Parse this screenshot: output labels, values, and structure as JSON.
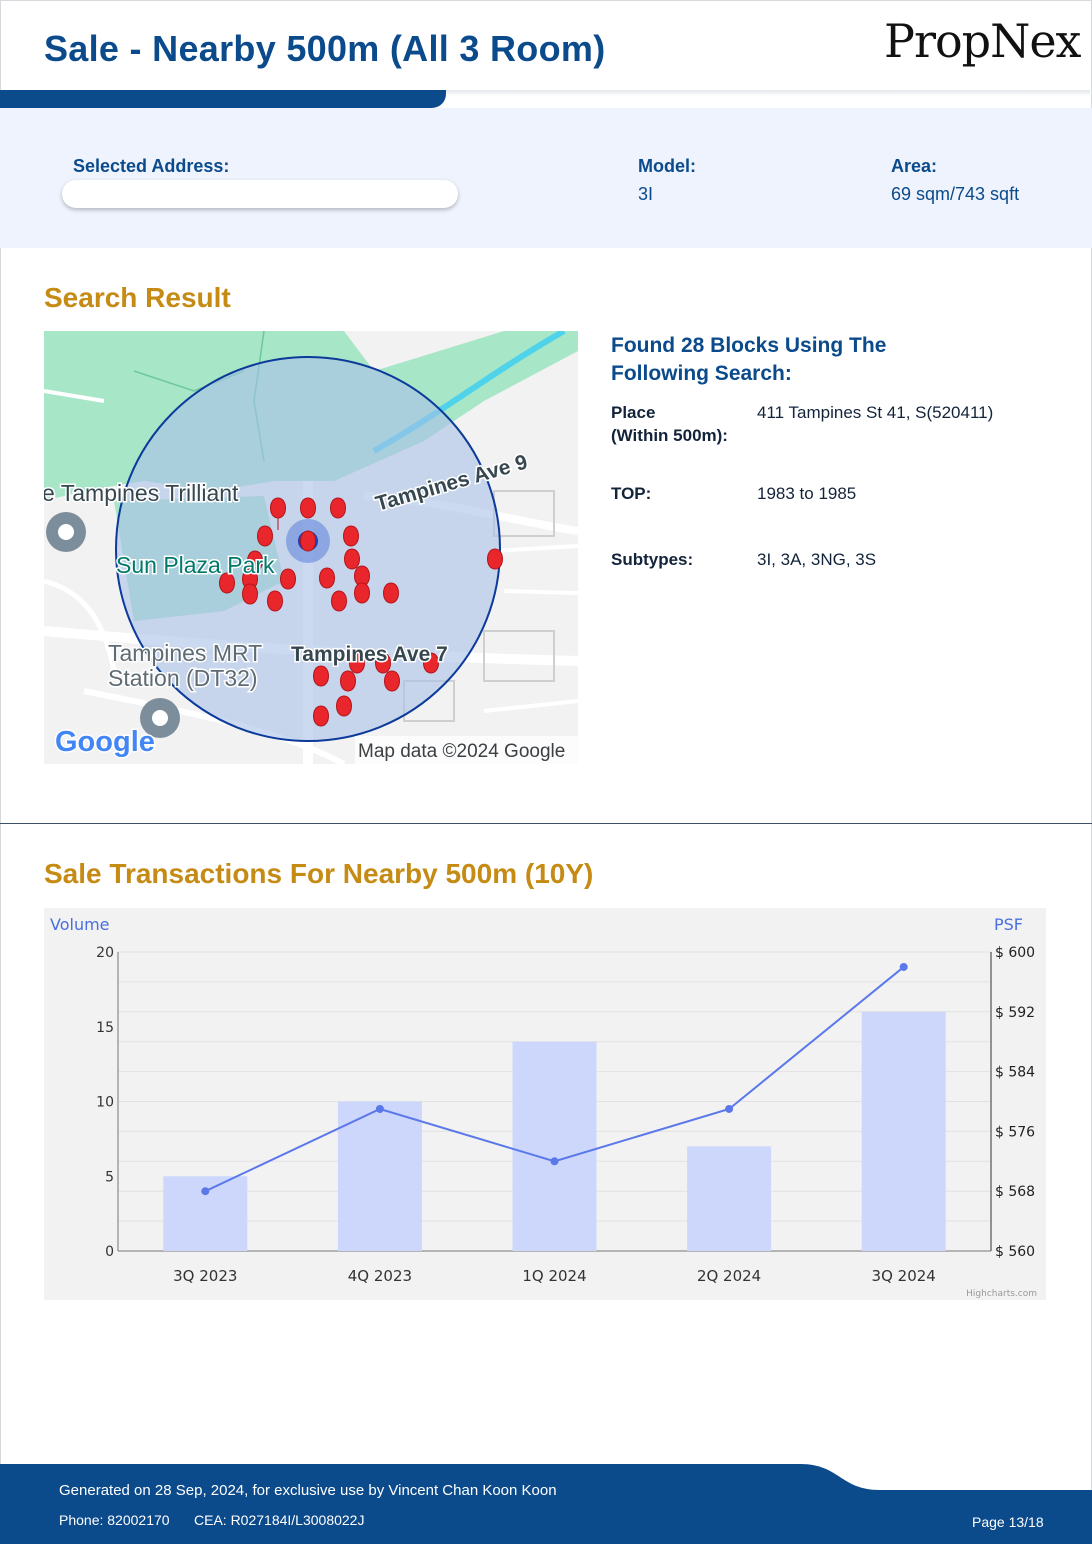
{
  "header": {
    "title": "Sale - Nearby 500m (All 3 Room)",
    "logo_text": "PropNex"
  },
  "info": {
    "selected_address_label": "Selected Address:",
    "selected_address_value": "",
    "model_label": "Model:",
    "model_value": "3I",
    "area_label": "Area:",
    "area_value": "69 sqm/743 sqft"
  },
  "search_result": {
    "title": "Search Result",
    "found_line1": "Found 28 Blocks Using The",
    "found_line2": "Following Search:",
    "place_label_1": "Place",
    "place_label_2": "(Within 500m):",
    "place_value": "411 Tampines St 41, S(520411)",
    "top_label": "TOP:",
    "top_value": "1983 to 1985",
    "subtypes_label": "Subtypes:",
    "subtypes_value": "3I, 3A, 3NG, 3S"
  },
  "map": {
    "labels": {
      "trilliant": "e Tampines Trilliant",
      "ave9": "Tampines Ave 9",
      "sun_plaza": "Sun Plaza Park",
      "mrt_1": "Tampines MRT",
      "mrt_2": "Station (DT32)",
      "ave7": "Tampines Ave 7",
      "google": "Google",
      "attribution": "Map data ©2024 Google"
    },
    "colors": {
      "radius_fill": "#a9bfe8",
      "radius_stroke": "#0b3a9a",
      "pin": "#e8262b",
      "park": "#a8e6c8"
    }
  },
  "transactions": {
    "title": "Sale Transactions For Nearby 500m (10Y)"
  },
  "chart_data": {
    "type": "bar",
    "categories": [
      "3Q 2023",
      "4Q 2023",
      "1Q 2024",
      "2Q 2024",
      "3Q 2024"
    ],
    "series": [
      {
        "name": "Volume",
        "type": "bar",
        "axis": "left",
        "values": [
          5,
          10,
          14,
          7,
          16
        ],
        "color": "#ccd7fb"
      },
      {
        "name": "PSF",
        "type": "line",
        "axis": "right",
        "values": [
          568,
          579,
          572,
          579,
          598
        ],
        "color": "#5b78ea"
      }
    ],
    "left_axis": {
      "title": "Volume",
      "ylim": [
        0,
        20
      ],
      "ticks": [
        "0",
        "5",
        "10",
        "15",
        "20"
      ]
    },
    "right_axis": {
      "title": "PSF",
      "ylim": [
        560,
        600
      ],
      "ticks": [
        "$ 560",
        "$ 568",
        "$ 576",
        "$ 584",
        "$ 592",
        "$ 600"
      ]
    },
    "grid": true,
    "credit": "Highcharts.com"
  },
  "footer": {
    "generated": "Generated on 28 Sep, 2024, for exclusive use by Vincent Chan Koon Koon",
    "phone": "Phone: 82002170",
    "cea": "CEA: R027184I/L3008022J",
    "page": "Page 13/18"
  }
}
